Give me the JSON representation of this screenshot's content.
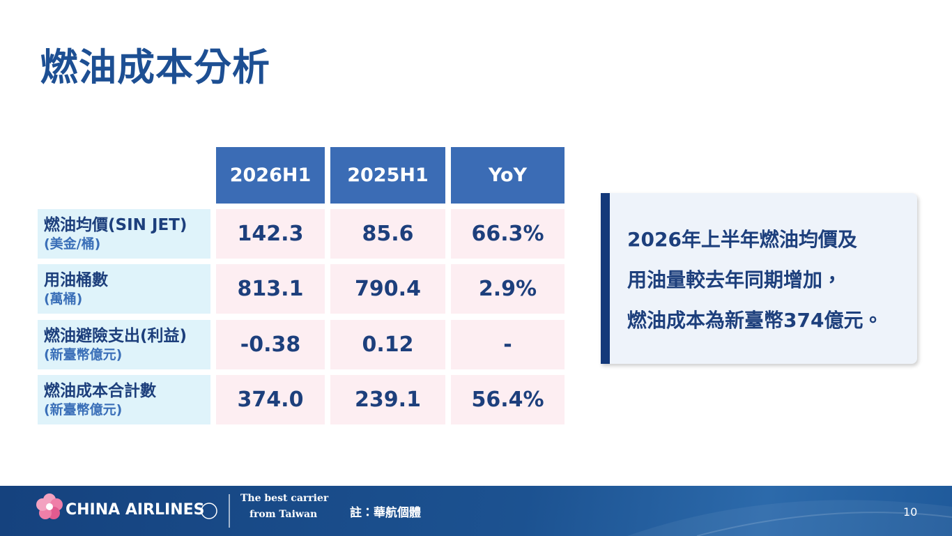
{
  "header": {
    "title": "燃油成本分析"
  },
  "table": {
    "columns": [
      "2026H1",
      "2025H1",
      "YoY"
    ],
    "rows": [
      {
        "label": "燃油均價(SIN JET)",
        "unit": "(美金/桶)",
        "values": [
          "142.3",
          "85.6",
          "66.3%"
        ]
      },
      {
        "label": "用油桶數",
        "unit": "(萬桶)",
        "values": [
          "813.1",
          "790.4",
          "2.9%"
        ]
      },
      {
        "label": "燃油避險支出(利益)",
        "unit": "(新臺幣億元)",
        "values": [
          "-0.38",
          "0.12",
          "-"
        ]
      },
      {
        "label": "燃油成本合計數",
        "unit": "(新臺幣億元)",
        "values": [
          "374.0",
          "239.1",
          "56.4%"
        ]
      }
    ]
  },
  "callout": {
    "lines": [
      "2026年上半年燃油均價及",
      "用油量較去年同期增加，",
      "燃油成本為新臺幣374億元。"
    ]
  },
  "footer": {
    "brand": "CHINA AIRLINES",
    "tagline": [
      "The best carrier",
      "from Taiwan"
    ],
    "note": "註：華航個體",
    "page": "10"
  }
}
